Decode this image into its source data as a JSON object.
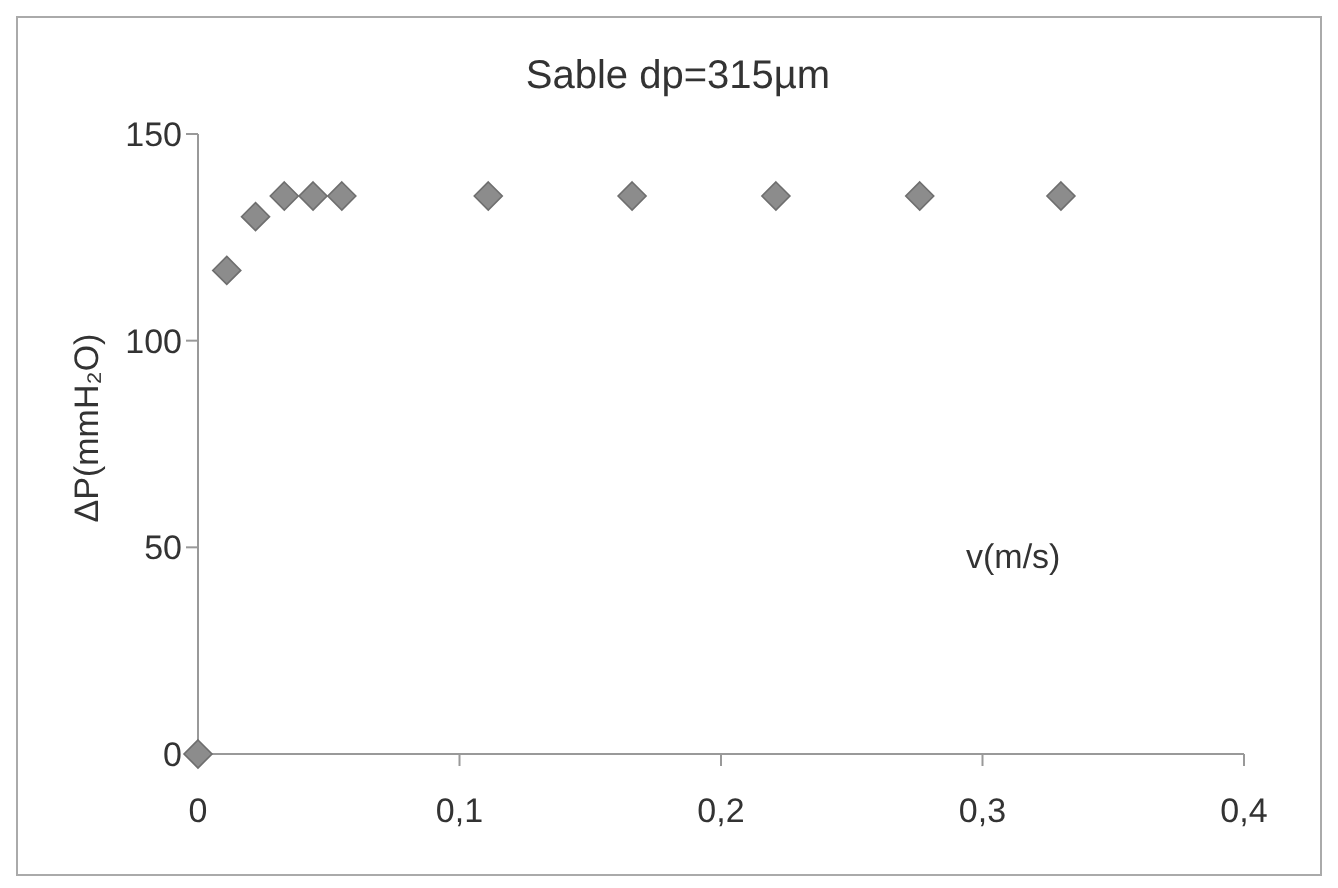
{
  "chart_data": {
    "type": "scatter",
    "title": "Sable dp=315µm",
    "xlabel": "v(m/s)",
    "ylabel": "ΔP(mmH₂O)",
    "x": [
      0,
      0.011,
      0.022,
      0.033,
      0.044,
      0.055,
      0.111,
      0.166,
      0.221,
      0.276,
      0.33
    ],
    "series": [
      {
        "color": "#8c8c8c",
        "values": [
          0,
          117,
          130,
          135,
          135,
          135,
          135,
          135,
          135,
          135,
          135
        ]
      }
    ],
    "xlim": [
      0,
      0.4
    ],
    "xticks": [
      {
        "value": 0,
        "label": "0"
      },
      {
        "value": 0.1,
        "label": "0,1"
      },
      {
        "value": 0.2,
        "label": "0,2"
      },
      {
        "value": 0.3,
        "label": "0,3"
      },
      {
        "value": 0.4,
        "label": "0,4"
      }
    ],
    "ylim": [
      0,
      150
    ],
    "yticks": [
      0,
      50,
      100,
      150
    ],
    "grid": false,
    "legend": false,
    "marker": "diamond"
  }
}
